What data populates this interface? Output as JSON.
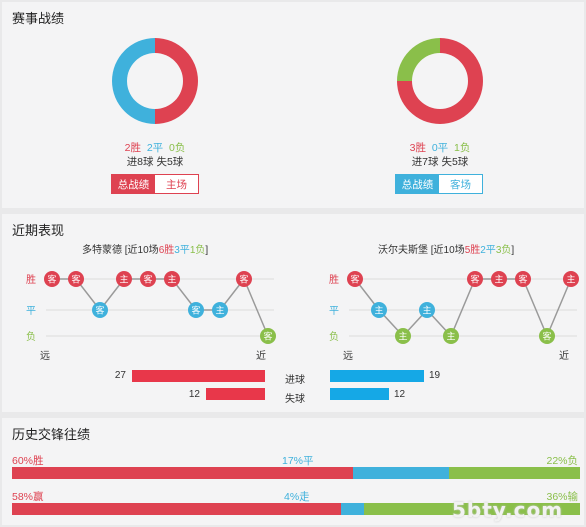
{
  "section1": {
    "title": "赛事战绩",
    "home": {
      "win": "2胜",
      "draw": "2平",
      "lose": "0负",
      "goals": "进8球  失5球",
      "win_pct": 50,
      "draw_pct": 50,
      "lose_pct": 0,
      "tab_active": "总战绩",
      "tab_other": "主场"
    },
    "away": {
      "win": "3胜",
      "draw": "0平",
      "lose": "1负",
      "goals": "进7球  失5球",
      "win_pct": 75,
      "draw_pct": 0,
      "lose_pct": 25,
      "tab_active": "总战绩",
      "tab_other": "客场"
    }
  },
  "section2": {
    "title": "近期表现",
    "home": {
      "team": "多特蒙德",
      "summary_pre": "[近10场",
      "wins": "6胜",
      "draws": "3平",
      "losses": "1负",
      "summary_post": "]",
      "results": [
        "W",
        "W",
        "D",
        "W",
        "W",
        "W",
        "D",
        "D",
        "W",
        "L"
      ],
      "venues": [
        "客",
        "客",
        "客",
        "主",
        "客",
        "主",
        "客",
        "主",
        "客",
        "客"
      ]
    },
    "away": {
      "team": "沃尔夫斯堡",
      "summary_pre": "[近10场",
      "wins": "5胜",
      "draws": "2平",
      "losses": "3负",
      "summary_post": "]",
      "results": [
        "W",
        "D",
        "L",
        "D",
        "L",
        "W",
        "W",
        "W",
        "L",
        "W"
      ],
      "venues": [
        "客",
        "主",
        "主",
        "主",
        "主",
        "客",
        "主",
        "客",
        "客",
        "主"
      ]
    },
    "y_labels": {
      "win": "胜",
      "draw": "平",
      "lose": "负"
    },
    "far": "远",
    "near": "近",
    "goals_label": "进球",
    "conceded_label": "失球",
    "home_goals": 27,
    "home_conceded": 12,
    "away_goals": 19,
    "away_conceded": 12
  },
  "section3": {
    "title": "历史交锋往绩",
    "row1": {
      "left": "60%胜",
      "mid": "17%平",
      "right": "22%负",
      "a": 60,
      "b": 17,
      "c": 22
    },
    "row2": {
      "left": "58%赢",
      "mid": "4%走",
      "right": "36%输",
      "a": 58,
      "b": 4,
      "c": 36
    }
  },
  "colors": {
    "red": "#de4251",
    "blue": "#3fb1dc",
    "green": "#8abf4a",
    "bar_red": "#e8374a",
    "bar_blue": "#15a8e6"
  },
  "watermark": "5bty.com"
}
